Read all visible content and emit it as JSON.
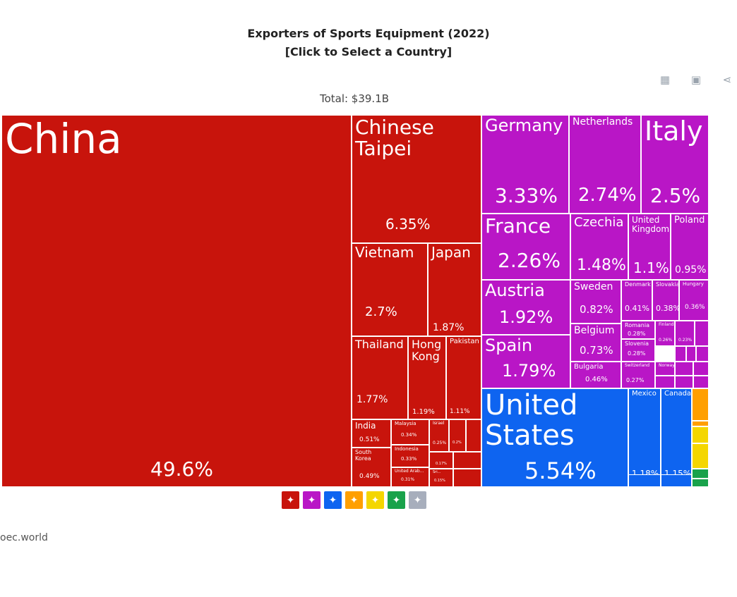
{
  "header": {
    "title_line1": "Exporters of Sports Equipment (2022)",
    "title_line2": "[Click to Select a Country]",
    "total": "Total: $39.1B"
  },
  "toolbar": [
    {
      "name": "table-icon",
      "glyph": "▦"
    },
    {
      "name": "image-icon",
      "glyph": "▣"
    },
    {
      "name": "share-icon",
      "glyph": "⋖"
    }
  ],
  "colors": {
    "asia": "#c8140c",
    "europe": "#b916c6",
    "north_america": "#0e64f0",
    "africa": "#ff9f00",
    "oceania": "#f4d600",
    "south_america": "#19a24b",
    "antarctica": "#a7aebc"
  },
  "legend": [
    {
      "name": "asia-icon",
      "region": "asia",
      "glyph": "✦"
    },
    {
      "name": "europe-icon",
      "region": "europe",
      "glyph": "✦"
    },
    {
      "name": "north-america-icon",
      "region": "north_america",
      "glyph": "✦"
    },
    {
      "name": "africa-icon",
      "region": "africa",
      "glyph": "✦"
    },
    {
      "name": "oceania-icon",
      "region": "oceania",
      "glyph": "✦"
    },
    {
      "name": "south-america-icon",
      "region": "south_america",
      "glyph": "✦"
    },
    {
      "name": "antarctica-icon",
      "region": "antarctica",
      "glyph": "✦"
    }
  ],
  "source": "oec.world",
  "chart_data": {
    "type": "treemap",
    "title": "Exporters of Sports Equipment (2022)",
    "total": "$39.1B",
    "items": [
      {
        "name": "China",
        "value": 49.6,
        "label": "49.6%",
        "region": "asia"
      },
      {
        "name": "Chinese Taipei",
        "value": 6.35,
        "label": "6.35%",
        "region": "asia"
      },
      {
        "name": "Vietnam",
        "value": 2.7,
        "label": "2.7%",
        "region": "asia"
      },
      {
        "name": "Japan",
        "value": 1.87,
        "label": "1.87%",
        "region": "asia"
      },
      {
        "name": "Thailand",
        "value": 1.77,
        "label": "1.77%",
        "region": "asia"
      },
      {
        "name": "Hong Kong",
        "value": 1.19,
        "label": "1.19%",
        "region": "asia"
      },
      {
        "name": "Pakistan",
        "value": 1.11,
        "label": "1.11%",
        "region": "asia"
      },
      {
        "name": "India",
        "value": 0.51,
        "label": "0.51%",
        "region": "asia"
      },
      {
        "name": "South Korea",
        "value": 0.49,
        "label": "0.49%",
        "region": "asia"
      },
      {
        "name": "Malaysia",
        "value": 0.34,
        "label": "0.34%",
        "region": "asia"
      },
      {
        "name": "Indonesia",
        "value": 0.33,
        "label": "0.33%",
        "region": "asia"
      },
      {
        "name": "United Arab...",
        "value": 0.31,
        "label": "0.31%",
        "region": "asia"
      },
      {
        "name": "Israel",
        "value": 0.25,
        "label": "0.25%",
        "region": "asia"
      },
      {
        "name": "",
        "value": 0.2,
        "label": "0.2%",
        "region": "asia"
      },
      {
        "name": "",
        "value": 0.17,
        "label": "0.17%",
        "region": "asia"
      },
      {
        "name": "Sri...",
        "value": 0.15,
        "label": "0.15%",
        "region": "asia"
      },
      {
        "name": "Germany",
        "value": 3.33,
        "label": "3.33%",
        "region": "europe"
      },
      {
        "name": "Netherlands",
        "value": 2.74,
        "label": "2.74%",
        "region": "europe"
      },
      {
        "name": "Italy",
        "value": 2.5,
        "label": "2.5%",
        "region": "europe"
      },
      {
        "name": "France",
        "value": 2.26,
        "label": "2.26%",
        "region": "europe"
      },
      {
        "name": "Czechia",
        "value": 1.48,
        "label": "1.48%",
        "region": "europe"
      },
      {
        "name": "United Kingdom",
        "value": 1.1,
        "label": "1.1%",
        "region": "europe"
      },
      {
        "name": "Poland",
        "value": 0.95,
        "label": "0.95%",
        "region": "europe"
      },
      {
        "name": "Austria",
        "value": 1.92,
        "label": "1.92%",
        "region": "europe"
      },
      {
        "name": "Spain",
        "value": 1.79,
        "label": "1.79%",
        "region": "europe"
      },
      {
        "name": "Sweden",
        "value": 0.82,
        "label": "0.82%",
        "region": "europe"
      },
      {
        "name": "Belgium",
        "value": 0.73,
        "label": "0.73%",
        "region": "europe"
      },
      {
        "name": "Bulgaria",
        "value": 0.46,
        "label": "0.46%",
        "region": "europe"
      },
      {
        "name": "Denmark",
        "value": 0.41,
        "label": "0.41%",
        "region": "europe"
      },
      {
        "name": "Slovakia",
        "value": 0.38,
        "label": "0.38%",
        "region": "europe"
      },
      {
        "name": "Hungary",
        "value": 0.36,
        "label": "0.36%",
        "region": "europe"
      },
      {
        "name": "Romania",
        "value": 0.28,
        "label": "0.28%",
        "region": "europe"
      },
      {
        "name": "Slovenia",
        "value": 0.28,
        "label": "0.28%",
        "region": "europe"
      },
      {
        "name": "Switzerland",
        "value": 0.27,
        "label": "0.27%",
        "region": "europe"
      },
      {
        "name": "Finland",
        "value": 0.26,
        "label": "0.26%",
        "region": "europe"
      },
      {
        "name": "",
        "value": 0.23,
        "label": "0.23%",
        "region": "europe"
      },
      {
        "name": "Norway",
        "value": null,
        "label": "",
        "region": "europe"
      },
      {
        "name": "United States",
        "value": 5.54,
        "label": "5.54%",
        "region": "north_america"
      },
      {
        "name": "Mexico",
        "value": 1.18,
        "label": "1.18%",
        "region": "north_america"
      },
      {
        "name": "Canada",
        "value": 1.15,
        "label": "1.15%",
        "region": "north_america"
      }
    ]
  }
}
